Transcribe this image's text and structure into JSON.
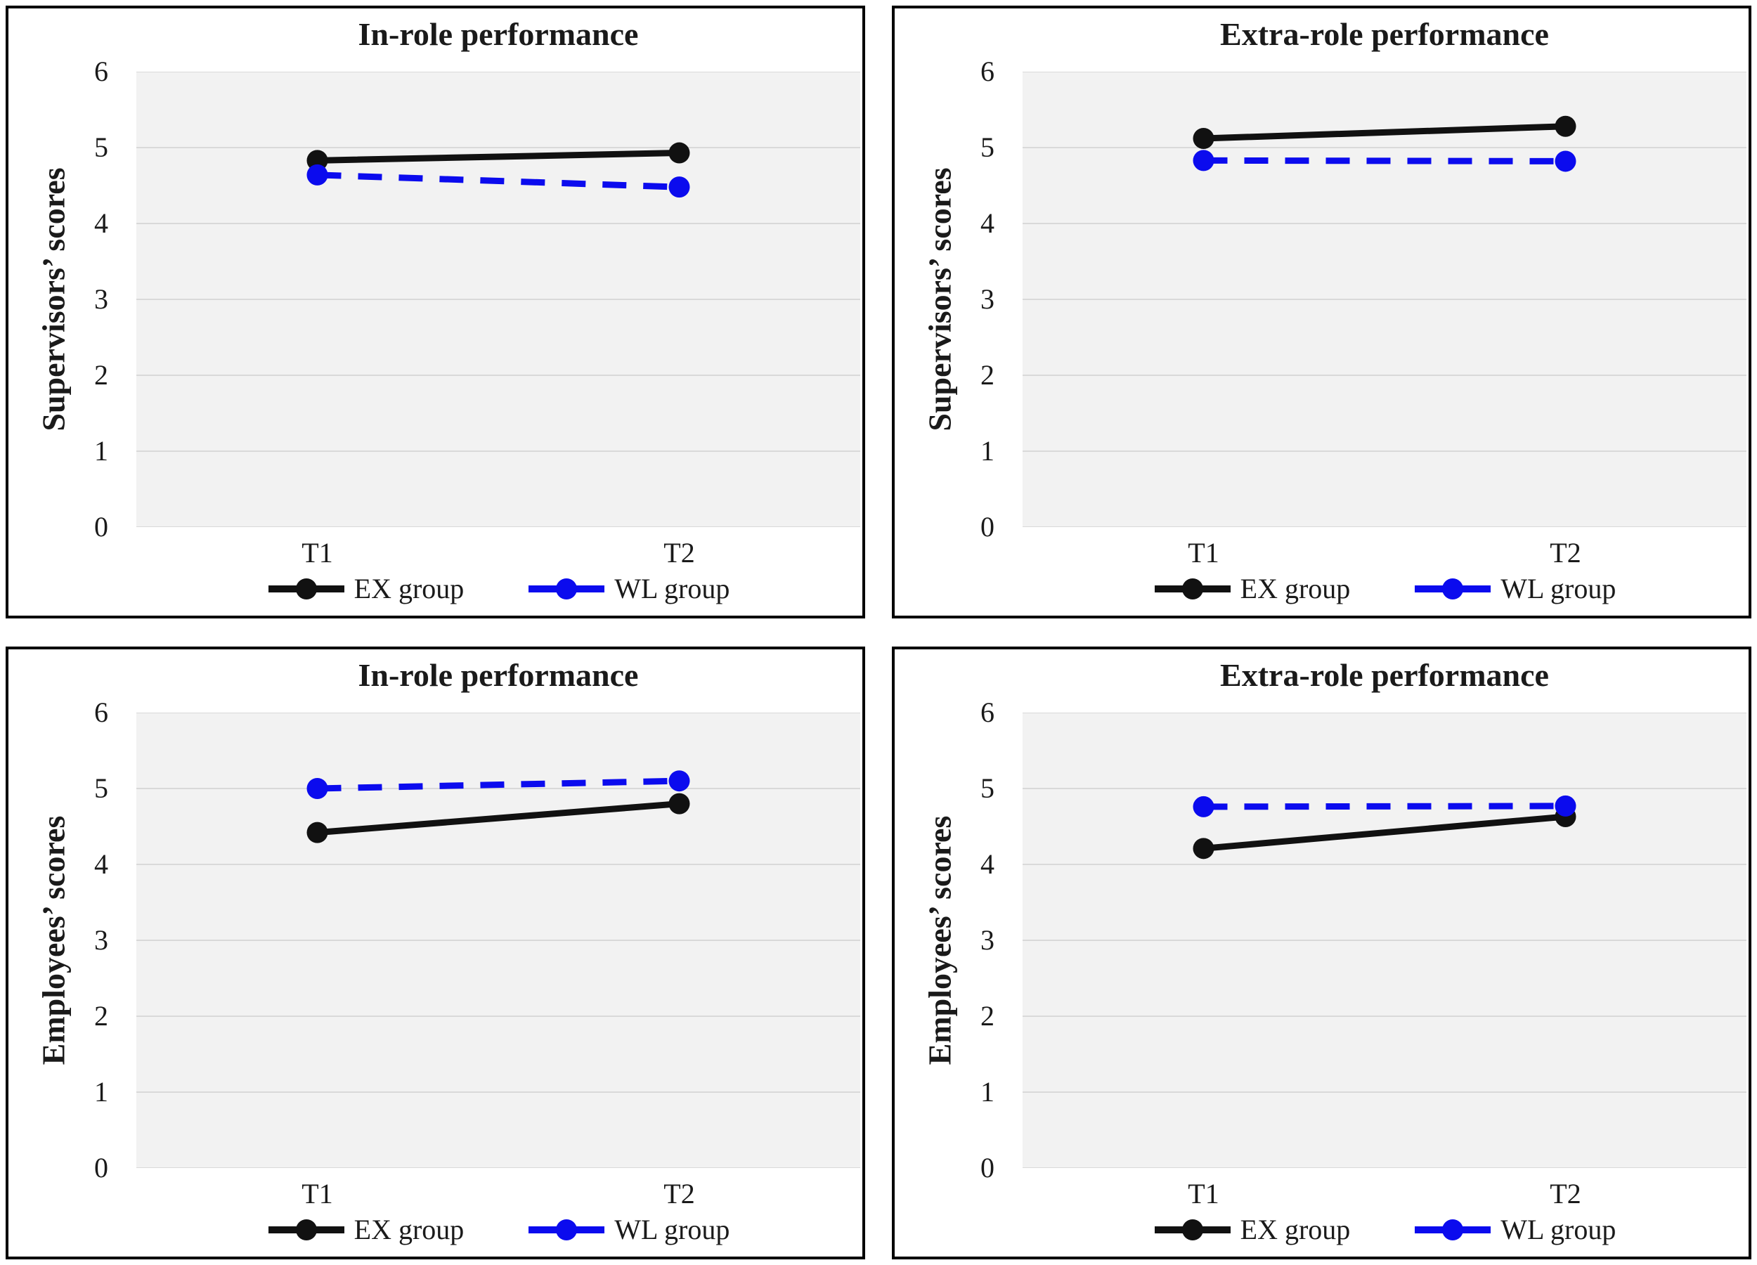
{
  "styles": {
    "page_bg": "#ffffff",
    "panel_border": "#000000",
    "plot_bg": "#f2f2f2",
    "grid": "#d9d9d9",
    "text": "#1a1a1a",
    "ex_color": "#111111",
    "wl_color": "#0b0bee"
  },
  "chart_data": [
    {
      "type": "line",
      "title": "In-role performance",
      "ylabel": "Supervisors’ scores",
      "xlabel": "",
      "categories": [
        "T1",
        "T2"
      ],
      "ylim": [
        0,
        6
      ],
      "yticks": [
        0,
        1,
        2,
        3,
        4,
        5,
        6
      ],
      "grid": true,
      "legend_position": "bottom",
      "series": [
        {
          "name": "EX group",
          "values": [
            4.83,
            4.93
          ],
          "color": "#111111",
          "line_style": "solid",
          "marker": "circle"
        },
        {
          "name": "WL group",
          "values": [
            4.64,
            4.48
          ],
          "color": "#0b0bee",
          "line_style": "dashed",
          "marker": "circle"
        }
      ]
    },
    {
      "type": "line",
      "title": "Extra-role performance",
      "ylabel": "Supervisors’ scores",
      "xlabel": "",
      "categories": [
        "T1",
        "T2"
      ],
      "ylim": [
        0,
        6
      ],
      "yticks": [
        0,
        1,
        2,
        3,
        4,
        5,
        6
      ],
      "grid": true,
      "legend_position": "bottom",
      "series": [
        {
          "name": "EX group",
          "values": [
            5.12,
            5.28
          ],
          "color": "#111111",
          "line_style": "solid",
          "marker": "circle"
        },
        {
          "name": "WL group",
          "values": [
            4.83,
            4.82
          ],
          "color": "#0b0bee",
          "line_style": "dashed",
          "marker": "circle"
        }
      ]
    },
    {
      "type": "line",
      "title": "In-role performance",
      "ylabel": "Employees’ scores",
      "xlabel": "",
      "categories": [
        "T1",
        "T2"
      ],
      "ylim": [
        0,
        6
      ],
      "yticks": [
        0,
        1,
        2,
        3,
        4,
        5,
        6
      ],
      "grid": true,
      "legend_position": "bottom",
      "series": [
        {
          "name": "EX group",
          "values": [
            4.42,
            4.8
          ],
          "color": "#111111",
          "line_style": "solid",
          "marker": "circle"
        },
        {
          "name": "WL group",
          "values": [
            5.0,
            5.1
          ],
          "color": "#0b0bee",
          "line_style": "dashed",
          "marker": "circle"
        }
      ]
    },
    {
      "type": "line",
      "title": "Extra-role performance",
      "ylabel": "Employees’ scores",
      "xlabel": "",
      "categories": [
        "T1",
        "T2"
      ],
      "ylim": [
        0,
        6
      ],
      "yticks": [
        0,
        1,
        2,
        3,
        4,
        5,
        6
      ],
      "grid": true,
      "legend_position": "bottom",
      "series": [
        {
          "name": "EX group",
          "values": [
            4.21,
            4.63
          ],
          "color": "#111111",
          "line_style": "solid",
          "marker": "circle"
        },
        {
          "name": "WL group",
          "values": [
            4.76,
            4.77
          ],
          "color": "#0b0bee",
          "line_style": "dashed",
          "marker": "circle"
        }
      ]
    }
  ]
}
